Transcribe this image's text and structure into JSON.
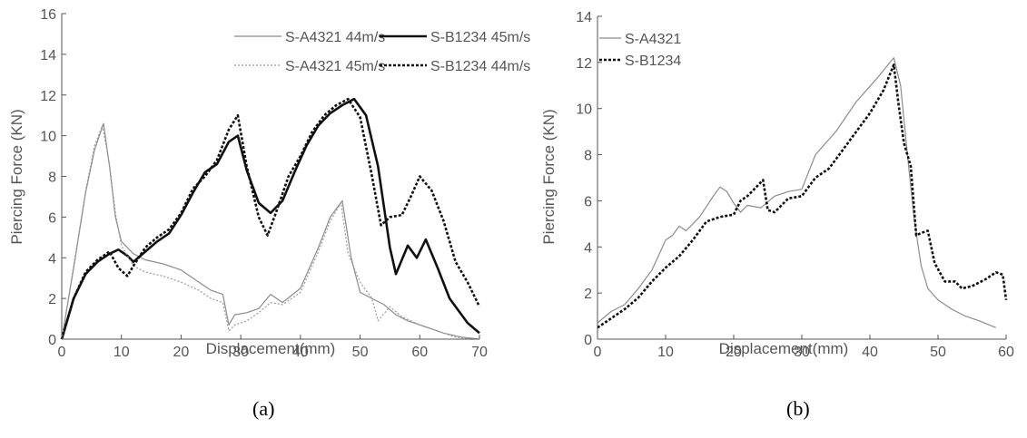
{
  "chart_data": [
    {
      "type": "line",
      "caption": "(a)",
      "xlabel": "Displacement(mm)",
      "ylabel": "Piercing Force (KN)",
      "xlim": [
        0,
        70
      ],
      "ylim": [
        0,
        16
      ],
      "xticks": [
        0,
        10,
        20,
        30,
        40,
        50,
        60,
        70
      ],
      "yticks": [
        0,
        2,
        4,
        6,
        8,
        10,
        12,
        14,
        16
      ],
      "grid": false,
      "legend": "top-right",
      "series": [
        {
          "name": "S-A4321 44m/s",
          "style": "thin-solid",
          "x": [
            0,
            2,
            4,
            5.5,
            7,
            8,
            9,
            10,
            12,
            14,
            17,
            20,
            23,
            25,
            27,
            28,
            29,
            31,
            33,
            35,
            37,
            40,
            43,
            45,
            47,
            48.5,
            50,
            52,
            54,
            56,
            58,
            61,
            64,
            67,
            70
          ],
          "y": [
            0,
            3.5,
            7.2,
            9.3,
            10.6,
            8.5,
            6,
            4.8,
            4.2,
            3.9,
            3.7,
            3.4,
            2.8,
            2.4,
            2.2,
            0.7,
            1.2,
            1.3,
            1.5,
            2.2,
            1.8,
            2.5,
            4.5,
            6,
            6.8,
            4,
            2.3,
            2,
            1.7,
            1.2,
            0.9,
            0.6,
            0.3,
            0.1,
            0
          ]
        },
        {
          "name": "S-B1234 45m/s",
          "style": "thick-solid",
          "x": [
            0,
            2,
            4,
            6,
            8,
            9.5,
            11,
            12,
            14,
            16,
            18,
            20,
            22,
            24,
            26,
            28,
            29.5,
            31,
            33,
            35,
            37,
            39,
            41,
            43,
            45,
            47,
            49,
            51,
            53,
            55,
            56,
            58,
            59.5,
            61,
            63,
            65,
            68,
            70
          ],
          "y": [
            0,
            2,
            3.2,
            3.8,
            4.2,
            4.4,
            4.1,
            3.8,
            4.3,
            4.8,
            5.2,
            6.1,
            7.2,
            8.2,
            8.6,
            9.7,
            10,
            8.3,
            6.7,
            6.2,
            6.8,
            8.2,
            9.5,
            10.5,
            11.1,
            11.5,
            11.8,
            11,
            8.5,
            4.5,
            3.2,
            4.6,
            4,
            4.9,
            3.5,
            2,
            0.8,
            0.3
          ]
        },
        {
          "name": "S-A4321 45m/s",
          "style": "thin-dashed",
          "x": [
            0,
            2,
            4,
            5.5,
            6.8,
            8,
            9,
            10,
            12,
            14,
            17,
            20,
            23,
            25,
            27,
            28,
            29,
            31,
            33,
            35,
            37,
            40,
            43,
            45,
            46.8,
            48,
            50,
            52,
            53,
            55,
            57,
            60,
            63,
            66,
            69
          ],
          "y": [
            0,
            3.6,
            7.3,
            9.5,
            10.5,
            8.6,
            6.2,
            4.6,
            3.6,
            3.3,
            3.1,
            2.8,
            2.4,
            2,
            1.8,
            0.4,
            0.7,
            0.9,
            1.3,
            1.8,
            1.7,
            2.3,
            4.3,
            5.8,
            6.7,
            4.2,
            2.8,
            2,
            0.9,
            1.6,
            1.1,
            0.7,
            0.4,
            0.1,
            0
          ]
        },
        {
          "name": "S-B1234 44m/s",
          "style": "thick-dashed",
          "x": [
            0,
            2,
            4,
            6,
            8,
            9.5,
            11,
            12,
            14,
            16,
            18,
            20,
            22,
            24,
            26,
            28,
            29.5,
            31,
            33,
            34.5,
            36,
            38,
            40,
            42,
            44,
            46,
            48,
            50,
            52,
            53.5,
            55,
            57,
            58.5,
            60,
            62,
            64,
            66,
            68,
            70
          ],
          "y": [
            0,
            2,
            3.3,
            3.9,
            4.3,
            3.5,
            3.1,
            3.6,
            4.5,
            5,
            5.4,
            6.2,
            7.4,
            8,
            8.8,
            10.3,
            11,
            8.5,
            6,
            5.1,
            6.3,
            8,
            9,
            10.2,
            11,
            11.5,
            11.8,
            10.9,
            8,
            5.6,
            6,
            6.1,
            7,
            8,
            7.3,
            5.8,
            3.8,
            2.8,
            1.6
          ]
        }
      ]
    },
    {
      "type": "line",
      "caption": "(b)",
      "xlabel": "Displacement(mm)",
      "ylabel": "Piercing Force (KN)",
      "xlim": [
        0,
        60
      ],
      "ylim": [
        0,
        14
      ],
      "xticks": [
        0,
        10,
        20,
        30,
        40,
        50,
        60
      ],
      "yticks": [
        0,
        2,
        4,
        6,
        8,
        10,
        12,
        14
      ],
      "grid": false,
      "legend": "top-left",
      "series": [
        {
          "name": "S-A4321",
          "style": "thin-solid",
          "x": [
            0,
            2,
            4,
            6,
            8,
            10,
            11,
            12,
            13,
            15,
            17,
            18,
            19,
            20,
            21,
            22,
            24,
            26,
            28,
            30,
            32,
            35,
            38,
            41,
            43.5,
            44.5,
            45.5,
            46.5,
            47.5,
            48.5,
            50,
            52,
            54,
            56,
            58.5
          ],
          "y": [
            0.7,
            1.2,
            1.5,
            2.2,
            3,
            4.3,
            4.5,
            4.9,
            4.7,
            5.3,
            6.2,
            6.6,
            6.4,
            5.9,
            5.5,
            5.8,
            5.7,
            6.2,
            6.4,
            6.5,
            8,
            9,
            10.3,
            11.3,
            12.2,
            11,
            8,
            5.2,
            3.2,
            2.2,
            1.7,
            1.3,
            1,
            0.8,
            0.5
          ]
        },
        {
          "name": "S-B1234",
          "style": "thick-dashed",
          "x": [
            0,
            2,
            4,
            6,
            8,
            10,
            12,
            14,
            16,
            18,
            20,
            21,
            22,
            23,
            24.3,
            25,
            26,
            27,
            28,
            30,
            32,
            34,
            36,
            38,
            40,
            42,
            43.5,
            44.2,
            45,
            46,
            46.8,
            47.5,
            48.5,
            49.5,
            51,
            52.5,
            53.5,
            55,
            57,
            58.5,
            59.5,
            60
          ],
          "y": [
            0.5,
            0.9,
            1.3,
            1.8,
            2.5,
            3.1,
            3.6,
            4.3,
            5.1,
            5.3,
            5.4,
            6,
            6.2,
            6.5,
            6.9,
            5.6,
            5.5,
            5.8,
            6.1,
            6.2,
            7,
            7.4,
            8.2,
            9,
            9.8,
            10.8,
            11.9,
            10.2,
            8.5,
            7.5,
            4.5,
            4.6,
            4.7,
            3.3,
            2.5,
            2.5,
            2.2,
            2.3,
            2.6,
            2.9,
            2.8,
            1.7
          ]
        }
      ]
    }
  ]
}
